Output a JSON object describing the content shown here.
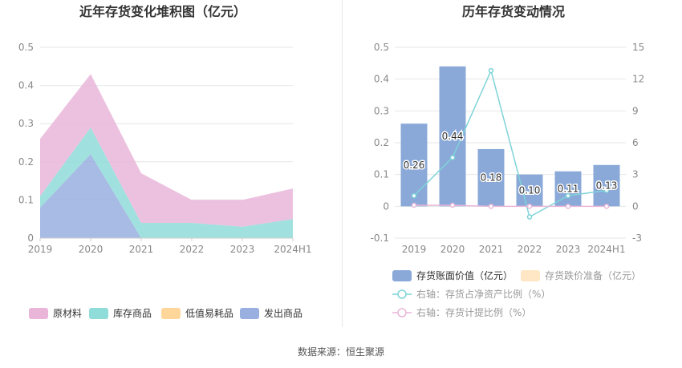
{
  "footer": {
    "source": "数据来源：恒生聚源"
  },
  "colors": {
    "raw": "#e9b6d9",
    "stock": "#8fdcd9",
    "lowvalue": "#ffd699",
    "shipped": "#98afdf",
    "bar": "#8aa9d8",
    "reserve": "#ffe6c4",
    "line_ratio": "#7fd3d8",
    "line_provision": "#e8b6d8",
    "grid": "#e6e6e6",
    "axis_text": "#888888",
    "title": "#333333"
  },
  "chart_data": [
    {
      "type": "area",
      "stacked": true,
      "title": "近年存货变化堆积图（亿元）",
      "categories": [
        "2019",
        "2020",
        "2021",
        "2022",
        "2023",
        "2024H1"
      ],
      "ylim": [
        0,
        0.5
      ],
      "yticks": [
        "0",
        "0.1",
        "0.2",
        "0.3",
        "0.4",
        "0.5"
      ],
      "grid": true,
      "legend_position": "bottom",
      "series": [
        {
          "name": "发出商品",
          "color_key": "shipped",
          "values": [
            0.08,
            0.22,
            0.0,
            0.0,
            0.0,
            0.0
          ]
        },
        {
          "name": "低值易耗品",
          "color_key": "lowvalue",
          "values": [
            0.0,
            0.0,
            0.0,
            0.0,
            0.0,
            0.0
          ]
        },
        {
          "name": "库存商品",
          "color_key": "stock",
          "values": [
            0.03,
            0.07,
            0.04,
            0.04,
            0.03,
            0.05
          ]
        },
        {
          "name": "原材料",
          "color_key": "raw",
          "values": [
            0.15,
            0.14,
            0.13,
            0.06,
            0.07,
            0.08
          ]
        }
      ],
      "legend": [
        "原材料",
        "库存商品",
        "低值易耗品",
        "发出商品"
      ]
    },
    {
      "type": "bar",
      "title": "历年存货变动情况",
      "categories": [
        "2019",
        "2020",
        "2021",
        "2022",
        "2023",
        "2024H1"
      ],
      "ylim": [
        -0.1,
        0.5
      ],
      "yticks": [
        "-0.1",
        "0",
        "0.1",
        "0.2",
        "0.3",
        "0.4",
        "0.5"
      ],
      "y2lim": [
        -3,
        15
      ],
      "y2ticks": [
        "-3",
        "0",
        "3",
        "6",
        "9",
        "12",
        "15"
      ],
      "grid": true,
      "legend_position": "bottom",
      "bars": {
        "name": "存货账面价值（亿元）",
        "values": [
          0.26,
          0.44,
          0.18,
          0.1,
          0.11,
          0.13
        ],
        "labels": [
          "0.26",
          "0.44",
          "0.18",
          "0.10",
          "0.11",
          "0.13"
        ]
      },
      "reserve": {
        "name": "存货跌价准备（亿元）",
        "values": [
          0,
          0,
          0,
          0,
          0,
          0
        ]
      },
      "lines": [
        {
          "name": "右轴：存货占净资产比例（%）",
          "color_key": "line_ratio",
          "values": [
            1.0,
            4.6,
            12.8,
            -1.0,
            1.0,
            1.5
          ]
        },
        {
          "name": "右轴：存货计提比例（%）",
          "color_key": "line_provision",
          "values": [
            0.1,
            0.1,
            0.0,
            0.0,
            0.0,
            0.0
          ]
        }
      ]
    }
  ]
}
